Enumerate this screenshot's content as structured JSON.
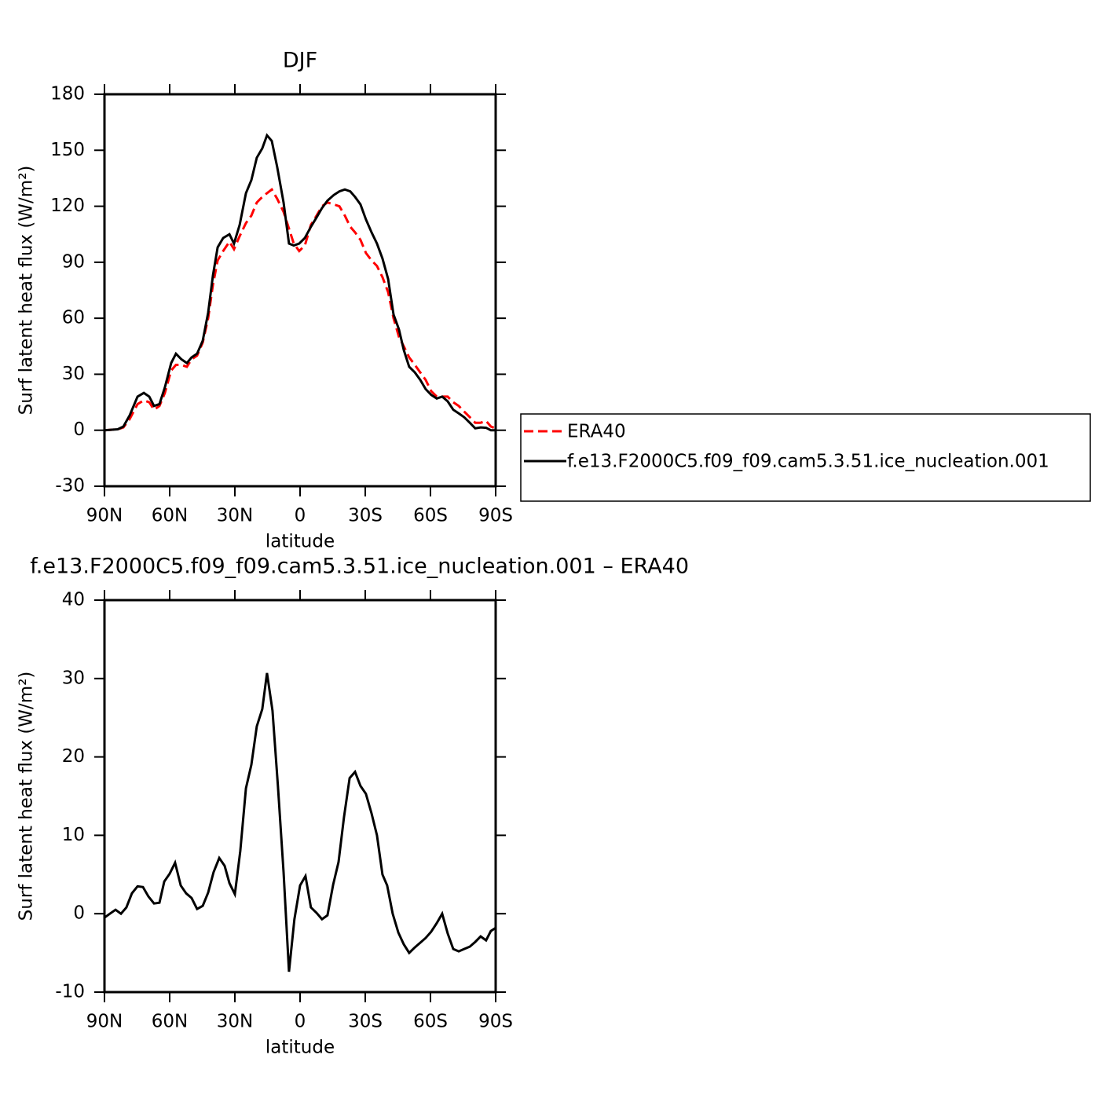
{
  "chart_data": [
    {
      "type": "line",
      "title": "DJF",
      "ylabel": "Surf latent heat flux (W/m²)",
      "xlabel": "latitude",
      "x": [
        90,
        83.9,
        81.3,
        78.4,
        74.8,
        71.9,
        69.4,
        67.2,
        64.7,
        62.2,
        59.3,
        57.1,
        54.6,
        52.1,
        49.9,
        47.4,
        44.8,
        42.3,
        40.1,
        37.9,
        35.4,
        32.5,
        30.4,
        27.8,
        24.9,
        22.4,
        19.9,
        17.4,
        15.2,
        13.0,
        10.5,
        7.6,
        5.1,
        2.9,
        0.4,
        -2.2,
        -5.0,
        -7.6,
        -10.1,
        -12.6,
        -15.5,
        -18.1,
        -20.6,
        -23.1,
        -25.3,
        -27.8,
        -30.3,
        -32.9,
        -35.4,
        -37.9,
        -40.5,
        -43.0,
        -45.5,
        -47.7,
        -50.2,
        -52.8,
        -55.3,
        -57.8,
        -60.3,
        -62.9,
        -65.4,
        -67.9,
        -70.5,
        -73.0,
        -75.5,
        -78.1,
        -80.6,
        -83.1,
        -85.6,
        -87.8,
        -90
      ],
      "series": [
        {
          "name": "ERA40",
          "color": "#ff0000",
          "linestyle": "dashed",
          "values": [
            0,
            0.5,
            1.5,
            6,
            14,
            16,
            15,
            11,
            13,
            20,
            32,
            35,
            35,
            34,
            38,
            40,
            47,
            60,
            78,
            91,
            96,
            101,
            97,
            104,
            111,
            115,
            122,
            125,
            127,
            129,
            124,
            117,
            108,
            100,
            96,
            99,
            110,
            115,
            120,
            122,
            121,
            120,
            115,
            109,
            106,
            102,
            95,
            91,
            88,
            82,
            74,
            60,
            50,
            45,
            39,
            35,
            31,
            27,
            21,
            18,
            18,
            18,
            15,
            13,
            10,
            7,
            4,
            4,
            5,
            2,
            1
          ]
        },
        {
          "name": "f.e13.F2000C5.f09_f09.cam5.3.51.ice_nucleation.001",
          "color": "#000000",
          "linestyle": "solid",
          "values": [
            0,
            0.5,
            2,
            8,
            18,
            20,
            18,
            13,
            14,
            23,
            36,
            41,
            38,
            36,
            39,
            41,
            48,
            63,
            83,
            98,
            103,
            105,
            100,
            110,
            127,
            134,
            146,
            151,
            158,
            155,
            141,
            122,
            100,
            99,
            100,
            103,
            109,
            114,
            119,
            123,
            126,
            128,
            129,
            128,
            125,
            121,
            113,
            106,
            100,
            92,
            81,
            62,
            54,
            43,
            34,
            31,
            27,
            22,
            19,
            17,
            18,
            15.5,
            11,
            9,
            7,
            4,
            1,
            1.5,
            1.3,
            0,
            0
          ]
        }
      ],
      "xlim": [
        90,
        -90
      ],
      "xticks": [
        {
          "value": 90,
          "label": "90N"
        },
        {
          "value": 60,
          "label": "60N"
        },
        {
          "value": 30,
          "label": "30N"
        },
        0,
        {
          "value": -30,
          "label": "30S"
        },
        {
          "value": -60,
          "label": "60S"
        },
        {
          "value": -90,
          "label": "90S"
        }
      ],
      "ylim": [
        -30,
        180
      ],
      "yticks": [
        -30,
        0,
        30,
        60,
        90,
        120,
        150,
        180
      ],
      "legend": "right",
      "grid": false
    },
    {
      "type": "line",
      "title": "f.e13.F2000C5.f09_f09.cam5.3.51.ice_nucleation.001 – ERA40",
      "ylabel": "Surf latent heat flux (W/m²)",
      "xlabel": "latitude",
      "x": [
        90,
        87.5,
        84.9,
        82.4,
        79.9,
        77.4,
        74.8,
        72.3,
        69.8,
        67.2,
        64.7,
        62.5,
        60.0,
        57.5,
        54.9,
        52.4,
        49.9,
        47.4,
        44.8,
        42.3,
        39.8,
        37.2,
        34.7,
        32.5,
        30.0,
        27.5,
        24.9,
        22.4,
        19.9,
        17.4,
        15.2,
        12.7,
        10.2,
        7.6,
        5.1,
        2.6,
        0,
        -2.5,
        -5.0,
        -7.6,
        -10.1,
        -12.6,
        -15.2,
        -17.7,
        -20.2,
        -22.8,
        -25.3,
        -27.8,
        -30.3,
        -32.9,
        -35.4,
        -37.9,
        -40.1,
        -42.6,
        -45.2,
        -47.7,
        -50.2,
        -52.8,
        -55.3,
        -57.8,
        -60.3,
        -62.9,
        -65.4,
        -67.9,
        -70.5,
        -73.0,
        -75.5,
        -78.1,
        -80.6,
        -83.1,
        -85.6,
        -87.8,
        -90
      ],
      "series": [
        {
          "name": "f.e13.F2000C5.f09_f09.cam5.3.51.ice_nucleation.001 – ERA40",
          "color": "#000000",
          "linestyle": "solid",
          "values": [
            -0.5,
            0,
            0.5,
            0,
            0.8,
            2.6,
            3.5,
            3.4,
            2.2,
            1.3,
            1.4,
            4.1,
            5.1,
            6.5,
            3.6,
            2.6,
            2.0,
            0.6,
            1.0,
            2.7,
            5.3,
            7.1,
            6.1,
            3.9,
            2.5,
            8.0,
            16.0,
            19.0,
            23.9,
            26.1,
            30.7,
            25.9,
            16.3,
            5.3,
            -7.4,
            -0.7,
            3.6,
            4.8,
            0.8,
            0.1,
            -0.7,
            -0.2,
            3.7,
            6.6,
            12.3,
            17.3,
            18.1,
            16.3,
            15.3,
            12.8,
            10.0,
            5.0,
            3.6,
            0,
            -2.4,
            -3.9,
            -5.0,
            -4.3,
            -3.7,
            -3.1,
            -2.3,
            -1.2,
            0,
            -2.5,
            -4.5,
            -4.8,
            -4.5,
            -4.2,
            -3.6,
            -2.9,
            -3.4,
            -2.2,
            -1.8
          ]
        }
      ],
      "xlim": [
        90,
        -90
      ],
      "xticks": [
        {
          "value": 90,
          "label": "90N"
        },
        {
          "value": 60,
          "label": "60N"
        },
        {
          "value": 30,
          "label": "30N"
        },
        0,
        {
          "value": -30,
          "label": "30S"
        },
        {
          "value": -60,
          "label": "60S"
        },
        {
          "value": -90,
          "label": "90S"
        }
      ],
      "ylim": [
        -10,
        40
      ],
      "yticks": [
        -10,
        0,
        10,
        20,
        30,
        40
      ],
      "grid": false
    }
  ]
}
